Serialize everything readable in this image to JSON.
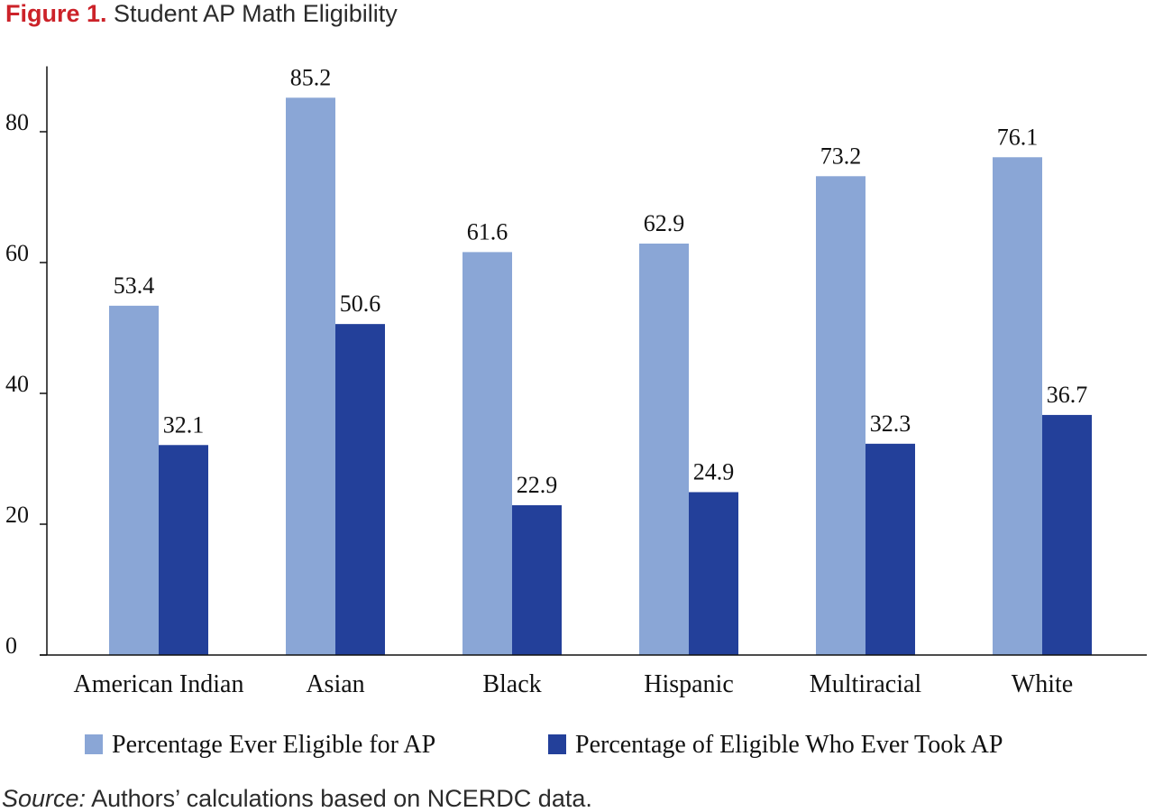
{
  "figure": {
    "label": "Figure 1.",
    "title": "Student AP Math Eligibility",
    "source_label": "Source:",
    "source_text": "Authors’ calculations based on NCERDC data."
  },
  "colors": {
    "series_light": "#8aa6d6",
    "series_dark": "#23409a",
    "axis": "#111111",
    "figure_label": "#cc2229"
  },
  "chart_data": {
    "type": "bar",
    "title": "Student AP Math Eligibility",
    "xlabel": "",
    "ylabel": "",
    "ylim": [
      0,
      90
    ],
    "yticks": [
      0,
      20,
      40,
      60,
      80
    ],
    "grid": false,
    "legend_position": "bottom",
    "categories": [
      "American Indian",
      "Asian",
      "Black",
      "Hispanic",
      "Multiracial",
      "White"
    ],
    "series": [
      {
        "name": "Percentage Ever Eligible for AP",
        "values": [
          53.4,
          85.2,
          61.6,
          62.9,
          73.2,
          76.1
        ],
        "labels": [
          "53.4",
          "85.2",
          "61.6",
          "62.9",
          "73.2",
          "76.1"
        ]
      },
      {
        "name": "Percentage of Eligible Who Ever Took AP",
        "values": [
          32.1,
          50.6,
          22.9,
          24.9,
          32.3,
          36.7
        ],
        "labels": [
          "32.1",
          "50.6",
          "22.9",
          "24.9",
          "32.3",
          "36.7"
        ]
      }
    ]
  }
}
